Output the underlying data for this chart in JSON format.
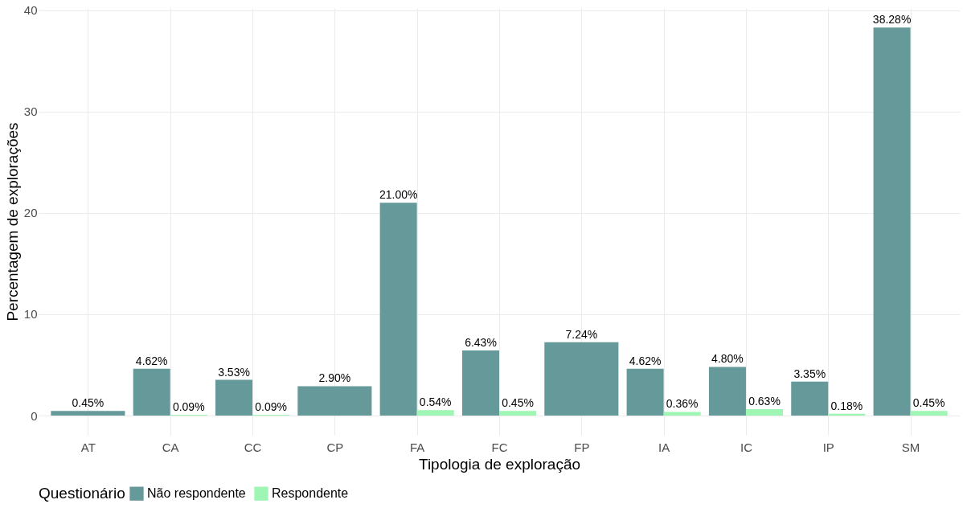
{
  "chart_data": {
    "type": "bar",
    "xlabel": "Tipologia de exploração",
    "ylabel": "Percentagem de explorações",
    "legend_title": "Questionário",
    "categories": [
      "AT",
      "CA",
      "CC",
      "CP",
      "FA",
      "FC",
      "FP",
      "IA",
      "IC",
      "IP",
      "SM"
    ],
    "series": [
      {
        "name": "Não respondente",
        "color": "#669999",
        "values": [
          0.45,
          4.62,
          3.53,
          2.9,
          21.0,
          6.43,
          7.24,
          4.62,
          4.8,
          3.35,
          38.28
        ],
        "value_labels": [
          "0.45%",
          "4.62%",
          "3.53%",
          "2.90%",
          "21.00%",
          "6.43%",
          "7.24%",
          "4.62%",
          "4.80%",
          "3.35%",
          "38.28%"
        ]
      },
      {
        "name": "Respondente",
        "color": "#9ff5b3",
        "values": [
          null,
          0.09,
          0.09,
          null,
          0.54,
          0.45,
          null,
          0.36,
          0.63,
          0.18,
          0.45
        ],
        "value_labels": [
          null,
          "0.09%",
          "0.09%",
          null,
          "0.54%",
          "0.45%",
          null,
          "0.36%",
          "0.63%",
          "0.18%",
          "0.45%"
        ]
      }
    ],
    "ylim": [
      -1.9,
      40.2
    ],
    "yticks": [
      0,
      10,
      20,
      30,
      40
    ],
    "grid": true,
    "legend": "bottom"
  }
}
